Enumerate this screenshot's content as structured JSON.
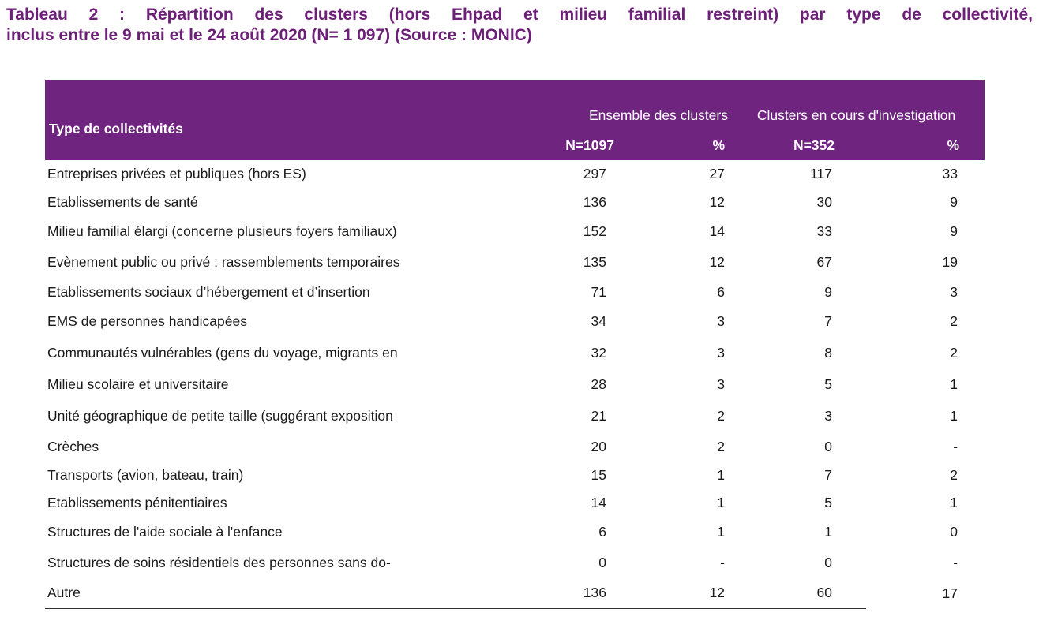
{
  "title": {
    "line1": "Tableau 2 : Répartition des clusters (hors Ehpad et milieu familial restreint) par type de collectivité,",
    "line2": "inclus entre le 9 mai et le 24 août 2020 (N= 1 097) (Source : MONIC)"
  },
  "table": {
    "header": {
      "type_label": "Type de collectivités",
      "group1_label": "Ensemble des clusters",
      "group2_label": "Clusters en cours d'investigation",
      "n1": "N=1097",
      "pct1": "%",
      "n2": "N=352",
      "pct2": "%"
    },
    "rows": [
      {
        "label": "Entreprises privées et publiques (hors ES)",
        "n1": "297",
        "p1": "27",
        "n2": "117",
        "p2": "33"
      },
      {
        "label": "Etablissements de santé",
        "n1": "136",
        "p1": "12",
        "n2": "30",
        "p2": "9"
      },
      {
        "label": "Milieu familial élargi (concerne plusieurs foyers familiaux)",
        "n1": "152",
        "p1": "14",
        "n2": "33",
        "p2": "9"
      },
      {
        "label": "Evènement public ou privé : rassemblements temporaires",
        "n1": "135",
        "p1": "12",
        "n2": "67",
        "p2": "19"
      },
      {
        "label": "Etablissements sociaux d’hébergement et d’insertion",
        "n1": "71",
        "p1": "6",
        "n2": "9",
        "p2": "3"
      },
      {
        "label": "EMS de personnes handicapées",
        "n1": "34",
        "p1": "3",
        "n2": "7",
        "p2": "2"
      },
      {
        "label": "Communautés vulnérables (gens du voyage, migrants en",
        "n1": "32",
        "p1": "3",
        "n2": "8",
        "p2": "2"
      },
      {
        "label": "Milieu scolaire et universitaire",
        "n1": "28",
        "p1": "3",
        "n2": "5",
        "p2": "1"
      },
      {
        "label": "Unité géographique de petite taille (suggérant exposition",
        "n1": "21",
        "p1": "2",
        "n2": "3",
        "p2": "1"
      },
      {
        "label": "Crèches",
        "n1": "20",
        "p1": "2",
        "n2": "0",
        "p2": "-"
      },
      {
        "label": "Transports (avion, bateau, train)",
        "n1": "15",
        "p1": "1",
        "n2": "7",
        "p2": "2"
      },
      {
        "label": "Etablissements pénitentiaires",
        "n1": "14",
        "p1": "1",
        "n2": "5",
        "p2": "1"
      },
      {
        "label": "Structures de l'aide sociale à l'enfance",
        "n1": "6",
        "p1": "1",
        "n2": "1",
        "p2": "0"
      },
      {
        "label": "Structures de soins résidentiels des personnes sans do-",
        "n1": "0",
        "p1": "-",
        "n2": "0",
        "p2": "-"
      },
      {
        "label": "Autre",
        "n1": "136",
        "p1": "12",
        "n2": "60",
        "p2": "17"
      }
    ]
  },
  "colors": {
    "title": "#6d2077",
    "header_bg": "#6f247f",
    "header_text": "#ffffff"
  }
}
